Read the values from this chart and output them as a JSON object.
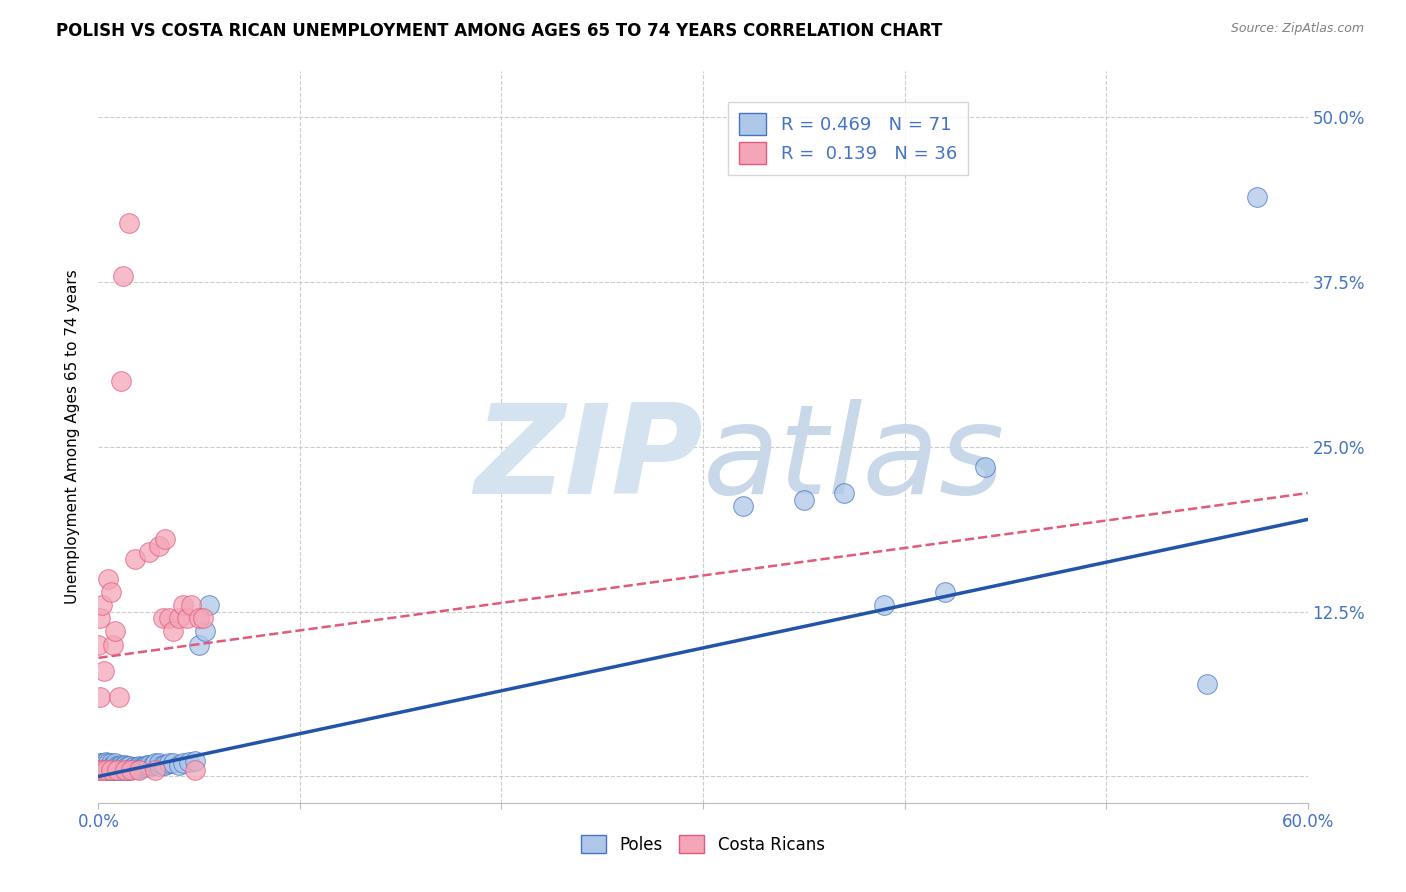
{
  "title": "POLISH VS COSTA RICAN UNEMPLOYMENT AMONG AGES 65 TO 74 YEARS CORRELATION CHART",
  "source": "Source: ZipAtlas.com",
  "ylabel": "Unemployment Among Ages 65 to 74 years",
  "xlim": [
    0.0,
    0.6
  ],
  "ylim": [
    -0.02,
    0.535
  ],
  "poles_R": 0.469,
  "poles_N": 71,
  "costa_R": 0.139,
  "costa_N": 36,
  "blue_fill": "#aec7e8",
  "blue_edge": "#4472c4",
  "pink_fill": "#f4a6b8",
  "pink_edge": "#e05a7a",
  "blue_line": "#2255aa",
  "pink_line": "#e05a7a",
  "grid_color": "#cccccc",
  "text_color": "#4472c4",
  "watermark_color": "#d5e3f0",
  "poles_x": [
    0.0,
    0.001,
    0.001,
    0.002,
    0.002,
    0.003,
    0.003,
    0.004,
    0.004,
    0.004,
    0.005,
    0.005,
    0.005,
    0.006,
    0.006,
    0.006,
    0.007,
    0.007,
    0.007,
    0.008,
    0.008,
    0.008,
    0.009,
    0.009,
    0.01,
    0.01,
    0.011,
    0.011,
    0.012,
    0.012,
    0.013,
    0.013,
    0.014,
    0.014,
    0.015,
    0.015,
    0.016,
    0.017,
    0.018,
    0.019,
    0.02,
    0.02,
    0.021,
    0.022,
    0.023,
    0.024,
    0.025,
    0.025,
    0.027,
    0.028,
    0.03,
    0.03,
    0.032,
    0.033,
    0.035,
    0.037,
    0.04,
    0.042,
    0.045,
    0.048,
    0.05,
    0.053,
    0.055,
    0.32,
    0.35,
    0.37,
    0.39,
    0.42,
    0.44,
    0.55,
    0.575
  ],
  "poles_y": [
    0.005,
    0.007,
    0.01,
    0.006,
    0.01,
    0.006,
    0.009,
    0.005,
    0.008,
    0.011,
    0.005,
    0.007,
    0.01,
    0.005,
    0.008,
    0.01,
    0.005,
    0.007,
    0.009,
    0.006,
    0.008,
    0.01,
    0.005,
    0.008,
    0.005,
    0.008,
    0.006,
    0.009,
    0.005,
    0.008,
    0.006,
    0.009,
    0.005,
    0.008,
    0.005,
    0.008,
    0.006,
    0.007,
    0.006,
    0.007,
    0.006,
    0.008,
    0.007,
    0.007,
    0.008,
    0.009,
    0.007,
    0.009,
    0.009,
    0.01,
    0.008,
    0.01,
    0.009,
    0.009,
    0.01,
    0.01,
    0.009,
    0.01,
    0.011,
    0.012,
    0.1,
    0.11,
    0.13,
    0.205,
    0.21,
    0.215,
    0.13,
    0.14,
    0.235,
    0.07,
    0.44
  ],
  "costa_x": [
    0.0,
    0.0,
    0.001,
    0.001,
    0.002,
    0.002,
    0.003,
    0.004,
    0.005,
    0.006,
    0.006,
    0.007,
    0.008,
    0.009,
    0.01,
    0.011,
    0.012,
    0.013,
    0.015,
    0.016,
    0.018,
    0.02,
    0.025,
    0.028,
    0.03,
    0.032,
    0.033,
    0.035,
    0.037,
    0.04,
    0.042,
    0.044,
    0.046,
    0.048,
    0.05,
    0.052
  ],
  "costa_y": [
    0.005,
    0.1,
    0.06,
    0.12,
    0.005,
    0.13,
    0.08,
    0.005,
    0.15,
    0.14,
    0.005,
    0.1,
    0.11,
    0.005,
    0.06,
    0.3,
    0.38,
    0.005,
    0.42,
    0.005,
    0.165,
    0.005,
    0.17,
    0.005,
    0.175,
    0.12,
    0.18,
    0.12,
    0.11,
    0.12,
    0.13,
    0.12,
    0.13,
    0.005,
    0.12,
    0.12
  ],
  "blue_trend_x0": 0.0,
  "blue_trend_y0": 0.0,
  "blue_trend_x1": 0.6,
  "blue_trend_y1": 0.195,
  "pink_trend_x0": 0.0,
  "pink_trend_y0": 0.09,
  "pink_trend_x1": 0.6,
  "pink_trend_y1": 0.215
}
